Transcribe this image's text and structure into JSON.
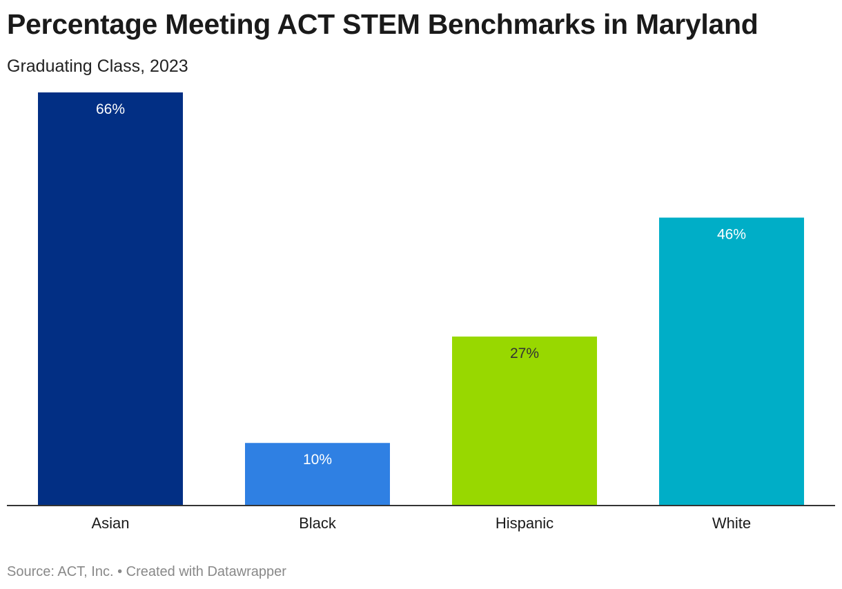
{
  "header": {
    "title": "Percentage Meeting ACT STEM Benchmarks in Maryland",
    "subtitle": "Graduating Class, 2023"
  },
  "footer": {
    "source": "Source: ACT, Inc. • Created with Datawrapper"
  },
  "chart_data": {
    "type": "bar",
    "title": "Percentage Meeting ACT STEM Benchmarks in Maryland",
    "subtitle": "Graduating Class, 2023",
    "xlabel": "",
    "ylabel": "",
    "ylim": [
      0,
      66
    ],
    "grid": false,
    "categories": [
      "Asian",
      "Black",
      "Hispanic",
      "White"
    ],
    "values": [
      66,
      10,
      27,
      46
    ],
    "value_labels": [
      "66%",
      "10%",
      "27%",
      "46%"
    ],
    "colors": [
      "#022f84",
      "#2f80e3",
      "#98d800",
      "#00aec7"
    ],
    "label_colors": [
      "#ffffff",
      "#ffffff",
      "#333333",
      "#ffffff"
    ]
  }
}
